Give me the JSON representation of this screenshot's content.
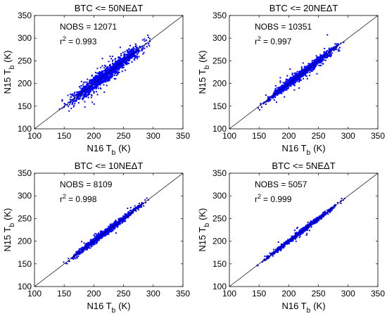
{
  "chart_data": [
    {
      "type": "scatter",
      "title": "BTC <= 50NEΔT",
      "xlabel_main": "N16 T",
      "xlabel_sub": "b",
      "xlabel_unit": "(K)",
      "ylabel_main": "N15 T",
      "ylabel_sub": "b",
      "ylabel_unit": "(K)",
      "xlim": [
        100,
        350
      ],
      "ylim": [
        100,
        350
      ],
      "xticks": [
        100,
        150,
        200,
        250,
        300,
        350
      ],
      "yticks": [
        100,
        150,
        200,
        250,
        300,
        350
      ],
      "annotations": {
        "nobs": "NOBS = 12071",
        "r2_prefix": "r",
        "r2_exp": "2",
        "r2_value": "= 0.993"
      },
      "reference_line": "1:1",
      "grid": false,
      "point_color": "#0000ff",
      "line_color": "#000000",
      "point_cloud": {
        "n_points_drawn": 1400,
        "x_range": [
          140,
          305
        ],
        "noise_sd": 7.5,
        "outlier_share": 0.12,
        "outlier_sd": 16,
        "seed": 11
      }
    },
    {
      "type": "scatter",
      "title": "BTC <= 20NEΔT",
      "xlabel_main": "N16 T",
      "xlabel_sub": "b",
      "xlabel_unit": "(K)",
      "ylabel_main": "N15 T",
      "ylabel_sub": "b",
      "ylabel_unit": "(K)",
      "xlim": [
        100,
        350
      ],
      "ylim": [
        100,
        350
      ],
      "xticks": [
        100,
        150,
        200,
        250,
        300,
        350
      ],
      "yticks": [
        100,
        150,
        200,
        250,
        300,
        350
      ],
      "annotations": {
        "nobs": "NOBS = 10351",
        "r2_prefix": "r",
        "r2_exp": "2",
        "r2_value": "= 0.997"
      },
      "reference_line": "1:1",
      "grid": false,
      "point_color": "#0000ff",
      "line_color": "#000000",
      "point_cloud": {
        "n_points_drawn": 1200,
        "x_range": [
          140,
          302
        ],
        "noise_sd": 4.5,
        "outlier_share": 0.06,
        "outlier_sd": 13,
        "seed": 23
      }
    },
    {
      "type": "scatter",
      "title": "BTC <= 10NEΔT",
      "xlabel_main": "N16 T",
      "xlabel_sub": "b",
      "xlabel_unit": "(K)",
      "ylabel_main": "N15 T",
      "ylabel_sub": "b",
      "ylabel_unit": "(K)",
      "xlim": [
        100,
        350
      ],
      "ylim": [
        100,
        350
      ],
      "xticks": [
        100,
        150,
        200,
        250,
        300,
        350
      ],
      "yticks": [
        100,
        150,
        200,
        250,
        300,
        350
      ],
      "annotations": {
        "nobs": "NOBS = 8109",
        "r2_prefix": "r",
        "r2_exp": "2",
        "r2_value": "= 0.998"
      },
      "reference_line": "1:1",
      "grid": false,
      "point_color": "#0000ff",
      "line_color": "#000000",
      "point_cloud": {
        "n_points_drawn": 1000,
        "x_range": [
          140,
          302
        ],
        "noise_sd": 3.5,
        "outlier_share": 0.04,
        "outlier_sd": 11,
        "seed": 37
      }
    },
    {
      "type": "scatter",
      "title": "BTC <= 5NEΔT",
      "xlabel_main": "N16 T",
      "xlabel_sub": "b",
      "xlabel_unit": "(K)",
      "ylabel_main": "N15 T",
      "ylabel_sub": "b",
      "ylabel_unit": "(K)",
      "xlim": [
        100,
        350
      ],
      "ylim": [
        100,
        350
      ],
      "xticks": [
        100,
        150,
        200,
        250,
        300,
        350
      ],
      "yticks": [
        100,
        150,
        200,
        250,
        300,
        350
      ],
      "annotations": {
        "nobs": "NOBS = 5057",
        "r2_prefix": "r",
        "r2_exp": "2",
        "r2_value": "= 0.999"
      },
      "reference_line": "1:1",
      "grid": false,
      "point_color": "#0000ff",
      "line_color": "#000000",
      "point_cloud": {
        "n_points_drawn": 800,
        "x_range": [
          140,
          300
        ],
        "noise_sd": 2.5,
        "outlier_share": 0.02,
        "outlier_sd": 9,
        "seed": 53
      }
    }
  ]
}
